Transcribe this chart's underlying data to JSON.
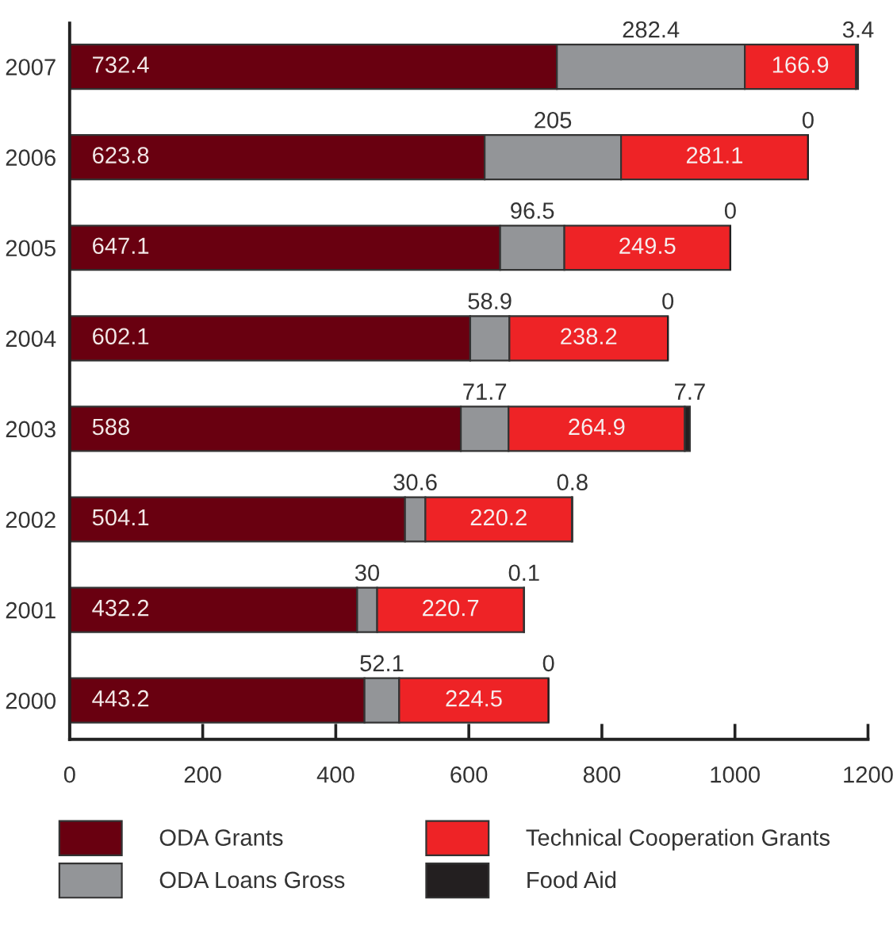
{
  "chart_data": {
    "type": "bar",
    "orientation": "horizontal",
    "stacked": true,
    "categories": [
      "2007",
      "2006",
      "2005",
      "2004",
      "2003",
      "2002",
      "2001",
      "2000"
    ],
    "series": [
      {
        "name": "ODA Grants",
        "color": "#690010",
        "values": [
          732.4,
          623.8,
          647.1,
          602.1,
          588,
          504.1,
          432.2,
          443.2
        ]
      },
      {
        "name": "ODA Loans Gross",
        "color": "#939598",
        "values": [
          282.4,
          205,
          96.5,
          58.9,
          71.7,
          30.6,
          30,
          52.1
        ]
      },
      {
        "name": "Technical Cooperation Grants",
        "color": "#ee2326",
        "values": [
          166.9,
          281.1,
          249.5,
          238.2,
          264.9,
          220.2,
          220.7,
          224.5
        ]
      },
      {
        "name": "Food Aid",
        "color": "#231f20",
        "values": [
          3.4,
          0,
          0,
          0,
          7.7,
          0.8,
          0.1,
          0
        ]
      }
    ],
    "xlim": [
      0,
      1200
    ],
    "xticks": [
      0,
      200,
      400,
      600,
      800,
      1000,
      1200
    ],
    "data_labels": true,
    "legend": "bottom",
    "grid": false
  }
}
